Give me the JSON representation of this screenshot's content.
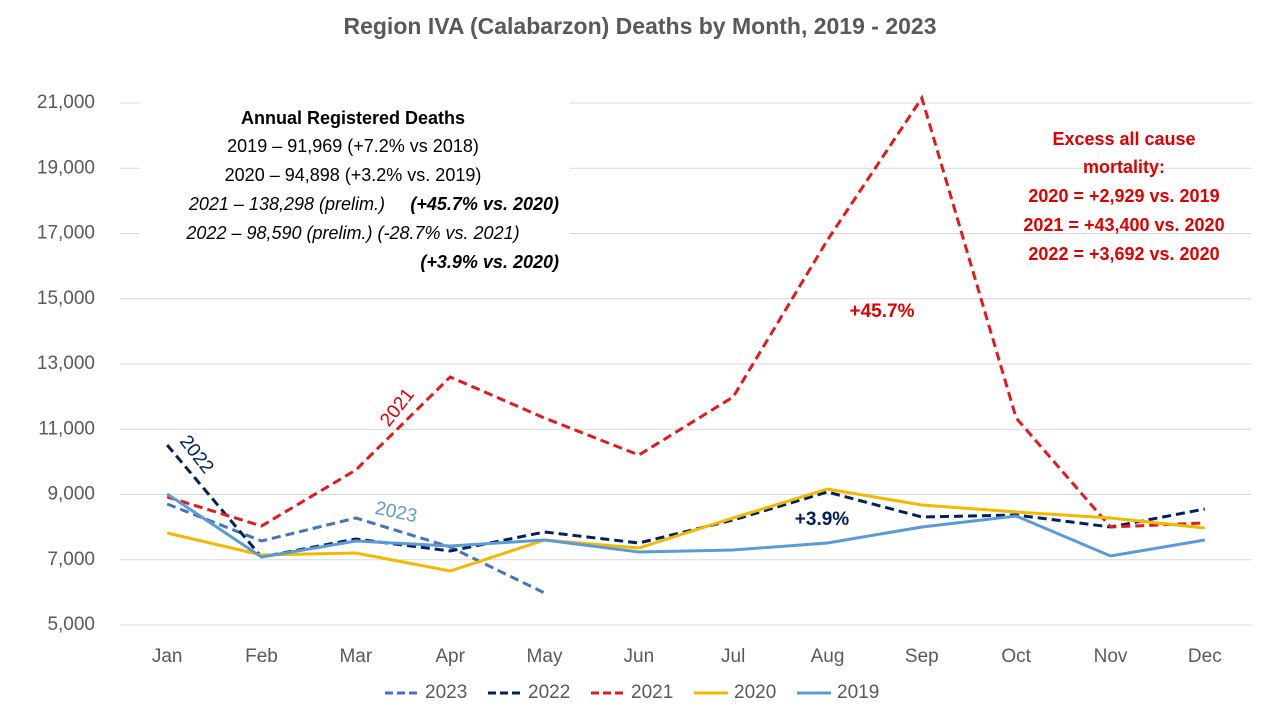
{
  "chart_data": {
    "type": "line",
    "title": "Region IVA (Calabarzon) Deaths by Month, 2019 - 2023",
    "categories": [
      "Jan",
      "Feb",
      "Mar",
      "Apr",
      "May",
      "Jun",
      "Jul",
      "Aug",
      "Sep",
      "Oct",
      "Nov",
      "Dec"
    ],
    "series": [
      {
        "name": "2023",
        "color": "#4472c4",
        "dash": true,
        "values": [
          8709,
          7575,
          8280,
          7391,
          5981,
          null,
          null,
          null,
          null,
          null,
          null,
          null
        ]
      },
      {
        "name": "2022",
        "color": "#002060",
        "dash": true,
        "values": [
          10517,
          7084,
          7636,
          7268,
          7851,
          7513,
          8218,
          9077,
          8310,
          8372,
          8004,
          8556
        ]
      },
      {
        "name": "2021",
        "color": "#e31a1c",
        "dash": true,
        "values": [
          8924,
          8034,
          9751,
          12602,
          11345,
          10211,
          11989,
          16801,
          21153,
          11345,
          8004,
          8127
        ]
      },
      {
        "name": "2020",
        "color": "#f5b800",
        "dash": false,
        "values": [
          7820,
          7146,
          7207,
          6655,
          7605,
          7360,
          8280,
          9169,
          8678,
          8464,
          8280,
          7973
        ]
      },
      {
        "name": "2019",
        "color": "#5b9bd5",
        "dash": false,
        "values": [
          9016,
          7084,
          7575,
          7421,
          7605,
          7238,
          7299,
          7513,
          8004,
          8341,
          7115,
          7605
        ]
      }
    ],
    "ylim": [
      5000,
      21000
    ],
    "yticks": [
      {
        "value": 5000,
        "label": "5,000"
      },
      {
        "value": 7000,
        "label": "7,000"
      },
      {
        "value": 9000,
        "label": "9,000"
      },
      {
        "value": 11000,
        "label": "11,000"
      },
      {
        "value": 13000,
        "label": "13,000"
      },
      {
        "value": 15000,
        "label": "15,000"
      },
      {
        "value": 17000,
        "label": "17,000"
      },
      {
        "value": 19000,
        "label": "19,000"
      },
      {
        "value": 21000,
        "label": "21,000"
      }
    ],
    "grid": true,
    "annual_box": {
      "heading": "Annual Registered Deaths",
      "lines": [
        "2019 – 91,969 (+7.2% vs 2018)",
        "2020 – 94,898 (+3.2% vs. 2019)",
        "2021 – 138,298 (prelim.)",
        "(+45.7% vs. 2020)",
        "2022 – 98,590 (prelim.) (-28.7% vs. 2021)",
        "(+3.9% vs. 2020)"
      ]
    },
    "excess_box": [
      "Excess all cause",
      "mortality:",
      "2020 = +2,929 vs. 2019",
      "2021 = +43,400 vs. 2020",
      "2022 = +3,692 vs. 2020"
    ],
    "line_labels": [
      "2021",
      "2022",
      "2023",
      "+45.7%",
      "+3.9%"
    ]
  }
}
